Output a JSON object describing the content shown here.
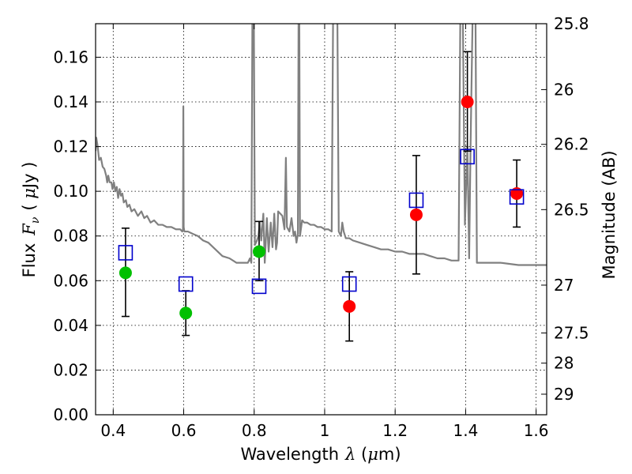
{
  "chart_data": {
    "type": "scatter",
    "xlabel_prefix": "Wavelength",
    "xlabel_symbol": "λ",
    "xlabel_unit_open": " (",
    "xlabel_unit_mu": "μ",
    "xlabel_unit_close": "m)",
    "ylabel_prefix": "Flux",
    "ylabel_symbol": "F",
    "ylabel_subscript": "ν",
    "ylabel_unit_open": "( ",
    "ylabel_unit_mu": "μ",
    "ylabel_unit_close": "Jy )",
    "y2label": "Magnitude (AB)",
    "xlim": [
      0.35,
      1.63
    ],
    "ylim": [
      0.0,
      0.175
    ],
    "grid": true,
    "x_ticks": [
      0.4,
      0.6,
      0.8,
      1.0,
      1.2,
      1.4,
      1.6
    ],
    "x_tick_labels": [
      "0.4",
      "0.6",
      "0.8",
      "1",
      "1.2",
      "1.4",
      "1.6"
    ],
    "y_ticks": [
      0.0,
      0.02,
      0.04,
      0.06,
      0.08,
      0.1,
      0.12,
      0.14,
      0.16
    ],
    "y_tick_labels": [
      "0.00",
      "0.02",
      "0.04",
      "0.06",
      "0.08",
      "0.10",
      "0.12",
      "0.14",
      "0.16"
    ],
    "mag_ticks": [
      {
        "label": "25.8",
        "flux": 0.175
      },
      {
        "label": "26",
        "flux": 0.1455
      },
      {
        "label": "26.2",
        "flux": 0.121
      },
      {
        "label": "26.5",
        "flux": 0.0918
      },
      {
        "label": "27",
        "flux": 0.058
      },
      {
        "label": "27.5",
        "flux": 0.0366
      },
      {
        "label": "28",
        "flux": 0.0231
      },
      {
        "label": "29",
        "flux": 0.0092
      }
    ],
    "series": [
      {
        "name": "observed (green)",
        "color": "#00c000",
        "marker": "circle",
        "points": [
          {
            "x": 0.435,
            "y": 0.0635,
            "ylo": 0.044,
            "yhi": 0.0835
          },
          {
            "x": 0.606,
            "y": 0.0455,
            "ylo": 0.0355,
            "yhi": 0.0555
          },
          {
            "x": 0.814,
            "y": 0.073,
            "ylo": 0.06,
            "yhi": 0.0865
          }
        ]
      },
      {
        "name": "observed (red)",
        "color": "#ff0000",
        "marker": "circle",
        "points": [
          {
            "x": 1.07,
            "y": 0.0485,
            "ylo": 0.033,
            "yhi": 0.064
          },
          {
            "x": 1.26,
            "y": 0.0895,
            "ylo": 0.063,
            "yhi": 0.116
          },
          {
            "x": 1.405,
            "y": 0.14,
            "ylo": 0.118,
            "yhi": 0.1625
          },
          {
            "x": 1.545,
            "y": 0.099,
            "ylo": 0.084,
            "yhi": 0.114
          }
        ]
      },
      {
        "name": "model (blue squares)",
        "color": "#0000cc",
        "marker": "square-open",
        "points": [
          {
            "x": 0.435,
            "y": 0.0725
          },
          {
            "x": 0.606,
            "y": 0.0585
          },
          {
            "x": 0.814,
            "y": 0.0575
          },
          {
            "x": 1.07,
            "y": 0.0585
          },
          {
            "x": 1.26,
            "y": 0.096
          },
          {
            "x": 1.405,
            "y": 0.1155
          },
          {
            "x": 1.545,
            "y": 0.0975
          }
        ]
      }
    ],
    "model_spectrum": {
      "name": "template spectrum",
      "color": "#808080",
      "points": [
        [
          0.35,
          0.118
        ],
        [
          0.352,
          0.124
        ],
        [
          0.356,
          0.12
        ],
        [
          0.36,
          0.114
        ],
        [
          0.365,
          0.115
        ],
        [
          0.37,
          0.111
        ],
        [
          0.375,
          0.11
        ],
        [
          0.38,
          0.107
        ],
        [
          0.383,
          0.104
        ],
        [
          0.386,
          0.107
        ],
        [
          0.39,
          0.104
        ],
        [
          0.395,
          0.104
        ],
        [
          0.398,
          0.101
        ],
        [
          0.402,
          0.104
        ],
        [
          0.406,
          0.1
        ],
        [
          0.41,
          0.102
        ],
        [
          0.414,
          0.097
        ],
        [
          0.418,
          0.101
        ],
        [
          0.422,
          0.098
        ],
        [
          0.426,
          0.099
        ],
        [
          0.43,
          0.095
        ],
        [
          0.436,
          0.096
        ],
        [
          0.44,
          0.093
        ],
        [
          0.446,
          0.094
        ],
        [
          0.452,
          0.091
        ],
        [
          0.46,
          0.092
        ],
        [
          0.47,
          0.089
        ],
        [
          0.48,
          0.091
        ],
        [
          0.488,
          0.088
        ],
        [
          0.496,
          0.089
        ],
        [
          0.506,
          0.086
        ],
        [
          0.516,
          0.087
        ],
        [
          0.528,
          0.085
        ],
        [
          0.54,
          0.085
        ],
        [
          0.552,
          0.084
        ],
        [
          0.565,
          0.084
        ],
        [
          0.578,
          0.083
        ],
        [
          0.59,
          0.083
        ],
        [
          0.596,
          0.082
        ],
        [
          0.598,
          0.083
        ],
        [
          0.599,
          0.138
        ],
        [
          0.6,
          0.084
        ],
        [
          0.602,
          0.082
        ],
        [
          0.612,
          0.082
        ],
        [
          0.625,
          0.081
        ],
        [
          0.64,
          0.08
        ],
        [
          0.655,
          0.078
        ],
        [
          0.67,
          0.077
        ],
        [
          0.69,
          0.074
        ],
        [
          0.71,
          0.071
        ],
        [
          0.73,
          0.07
        ],
        [
          0.75,
          0.068
        ],
        [
          0.77,
          0.068
        ],
        [
          0.782,
          0.068
        ],
        [
          0.788,
          0.07
        ],
        [
          0.792,
          0.068
        ],
        [
          0.795,
          0.18
        ],
        [
          0.799,
          0.18
        ],
        [
          0.802,
          0.076
        ],
        [
          0.808,
          0.078
        ],
        [
          0.812,
          0.08
        ],
        [
          0.816,
          0.086
        ],
        [
          0.82,
          0.078
        ],
        [
          0.826,
          0.09
        ],
        [
          0.83,
          0.068
        ],
        [
          0.836,
          0.088
        ],
        [
          0.841,
          0.073
        ],
        [
          0.847,
          0.086
        ],
        [
          0.852,
          0.075
        ],
        [
          0.857,
          0.09
        ],
        [
          0.862,
          0.074
        ],
        [
          0.865,
          0.077
        ],
        [
          0.868,
          0.091
        ],
        [
          0.874,
          0.09
        ],
        [
          0.88,
          0.089
        ],
        [
          0.886,
          0.083
        ],
        [
          0.89,
          0.115
        ],
        [
          0.893,
          0.084
        ],
        [
          0.9,
          0.082
        ],
        [
          0.906,
          0.088
        ],
        [
          0.912,
          0.08
        ],
        [
          0.916,
          0.082
        ],
        [
          0.92,
          0.077
        ],
        [
          0.924,
          0.081
        ],
        [
          0.926,
          0.18
        ],
        [
          0.928,
          0.18
        ],
        [
          0.93,
          0.08
        ],
        [
          0.936,
          0.087
        ],
        [
          0.942,
          0.086
        ],
        [
          0.95,
          0.086
        ],
        [
          0.96,
          0.085
        ],
        [
          0.97,
          0.085
        ],
        [
          0.98,
          0.084
        ],
        [
          0.99,
          0.084
        ],
        [
          1.0,
          0.083
        ],
        [
          1.01,
          0.083
        ],
        [
          1.02,
          0.082
        ],
        [
          1.024,
          0.18
        ],
        [
          1.036,
          0.18
        ],
        [
          1.04,
          0.082
        ],
        [
          1.046,
          0.08
        ],
        [
          1.05,
          0.086
        ],
        [
          1.054,
          0.082
        ],
        [
          1.06,
          0.079
        ],
        [
          1.07,
          0.079
        ],
        [
          1.08,
          0.078
        ],
        [
          1.1,
          0.077
        ],
        [
          1.12,
          0.076
        ],
        [
          1.14,
          0.075
        ],
        [
          1.16,
          0.074
        ],
        [
          1.18,
          0.074
        ],
        [
          1.2,
          0.073
        ],
        [
          1.22,
          0.073
        ],
        [
          1.24,
          0.072
        ],
        [
          1.26,
          0.072
        ],
        [
          1.28,
          0.072
        ],
        [
          1.3,
          0.071
        ],
        [
          1.32,
          0.07
        ],
        [
          1.34,
          0.07
        ],
        [
          1.36,
          0.069
        ],
        [
          1.38,
          0.069
        ],
        [
          1.385,
          0.18
        ],
        [
          1.392,
          0.18
        ],
        [
          1.398,
          0.085
        ],
        [
          1.405,
          0.12
        ],
        [
          1.41,
          0.07
        ],
        [
          1.414,
          0.12
        ],
        [
          1.42,
          0.18
        ],
        [
          1.428,
          0.18
        ],
        [
          1.432,
          0.068
        ],
        [
          1.45,
          0.068
        ],
        [
          1.5,
          0.068
        ],
        [
          1.55,
          0.067
        ],
        [
          1.6,
          0.067
        ],
        [
          1.63,
          0.067
        ]
      ]
    }
  }
}
